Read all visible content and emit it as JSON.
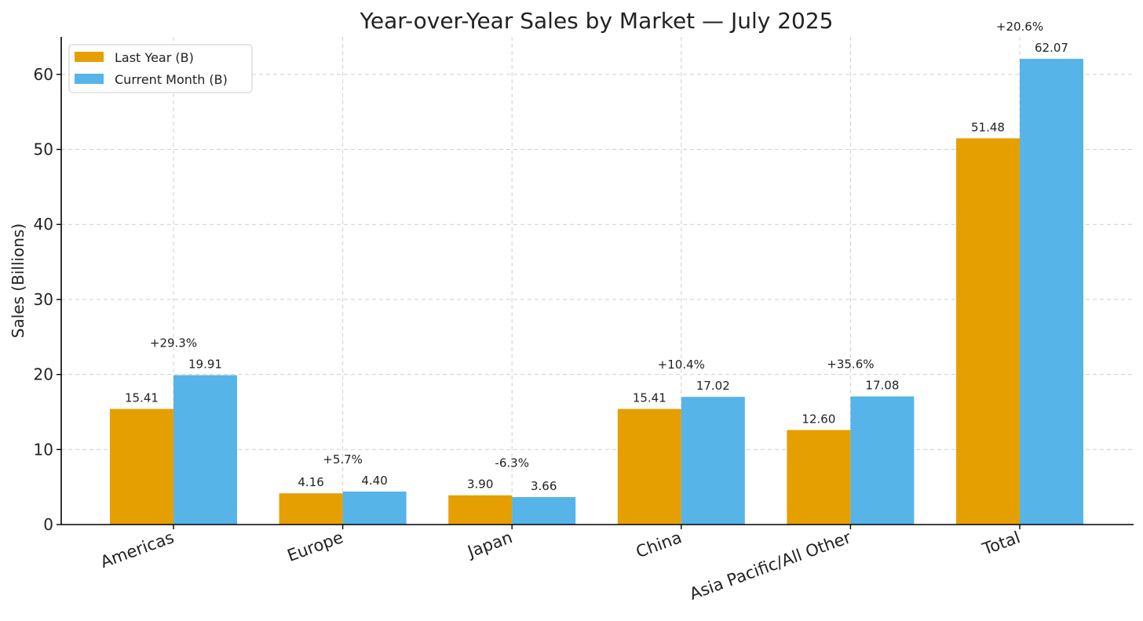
{
  "chart_data": {
    "type": "bar",
    "title": "Year-over-Year Sales by Market — July 2025",
    "xlabel": "",
    "ylabel": "Sales (Billions)",
    "ylim": [
      0,
      65
    ],
    "yticks": [
      0,
      10,
      20,
      30,
      40,
      50,
      60
    ],
    "categories": [
      "Americas",
      "Europe",
      "Japan",
      "China",
      "Asia Pacific/All Other",
      "Total"
    ],
    "series": [
      {
        "name": "Last Year (B)",
        "color": "#E69F00",
        "values": [
          15.41,
          4.16,
          3.9,
          15.41,
          12.6,
          51.48
        ],
        "labels": [
          "15.41",
          "4.16",
          "3.90",
          "15.41",
          "12.60",
          "51.48"
        ]
      },
      {
        "name": "Current Month (B)",
        "color": "#56B4E9",
        "values": [
          19.91,
          4.4,
          3.66,
          17.02,
          17.08,
          62.07
        ],
        "labels": [
          "19.91",
          "4.40",
          "3.66",
          "17.02",
          "17.08",
          "62.07"
        ]
      }
    ],
    "pct_change": [
      "+29.3%",
      "+5.7%",
      "-6.3%",
      "+10.4%",
      "+35.6%",
      "+20.6%"
    ],
    "legend_position": "top-left",
    "grid": true
  }
}
